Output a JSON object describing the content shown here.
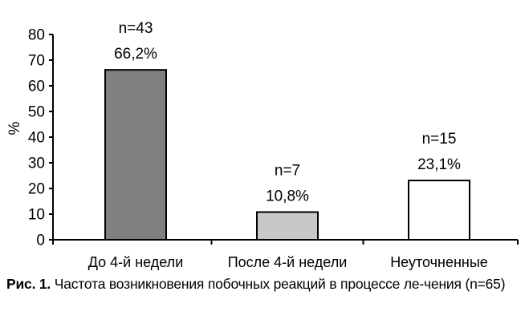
{
  "chart_data": {
    "type": "bar",
    "categories": [
      "До 4-й недели",
      "После 4-й недели",
      "Неуточненные"
    ],
    "values": [
      66.2,
      10.8,
      23.1
    ],
    "counts": [
      "n=43",
      "n=7",
      "n=15"
    ],
    "data_labels": [
      "66,2%",
      "10,8%",
      "23,1%"
    ],
    "bar_colors": [
      "#808080",
      "#c8c8c8",
      "#ffffff"
    ],
    "ylabel": "%",
    "xlabel": "",
    "ylim": [
      0,
      80
    ],
    "yticks": [
      0,
      10,
      20,
      30,
      40,
      50,
      60,
      70,
      80
    ],
    "grid": false,
    "legend": false
  },
  "caption": {
    "label": "Рис. 1.",
    "text": " Частота возникновения побочных реакций в процессе ле-чения (n=65)"
  }
}
